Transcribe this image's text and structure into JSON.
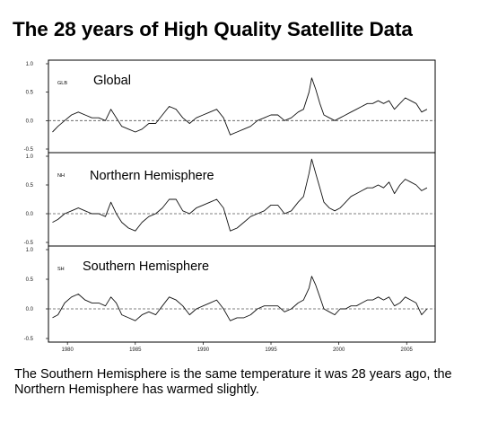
{
  "page": {
    "title": "The 28 years of High Quality Satellite Data",
    "caption": "The Southern Hemisphere is the same temperature it was 28 years ago, the Northern Hemisphere has warmed slightly."
  },
  "chart_data": [
    {
      "type": "line",
      "code": "GLB",
      "label": "Global",
      "ylim": [
        -0.5,
        1.0
      ],
      "yticks": [
        -0.5,
        0.0,
        0.5,
        1.0
      ],
      "ytick_labels": [
        "-0.5",
        "0.0",
        "0.5",
        "1.0"
      ],
      "reference_line": 0.0,
      "x": [
        1978.9,
        1979.3,
        1979.8,
        1980.3,
        1980.8,
        1981.3,
        1981.8,
        1982.3,
        1982.8,
        1983.2,
        1983.6,
        1984.0,
        1984.5,
        1985.0,
        1985.5,
        1986.0,
        1986.5,
        1987.0,
        1987.5,
        1988.0,
        1988.5,
        1989.0,
        1989.5,
        1990.0,
        1990.5,
        1991.0,
        1991.5,
        1992.0,
        1992.5,
        1993.0,
        1993.5,
        1994.0,
        1994.5,
        1995.0,
        1995.5,
        1996.0,
        1996.5,
        1997.0,
        1997.4,
        1997.8,
        1998.0,
        1998.3,
        1998.6,
        1998.9,
        1999.3,
        1999.7,
        2000.1,
        2000.5,
        2000.9,
        2001.3,
        2001.7,
        2002.1,
        2002.5,
        2002.9,
        2003.3,
        2003.7,
        2004.1,
        2004.5,
        2004.9,
        2005.3,
        2005.7,
        2006.1,
        2006.5
      ],
      "y": [
        -0.2,
        -0.1,
        0.0,
        0.1,
        0.15,
        0.1,
        0.05,
        0.05,
        0.0,
        0.2,
        0.05,
        -0.1,
        -0.15,
        -0.2,
        -0.15,
        -0.05,
        -0.05,
        0.1,
        0.25,
        0.2,
        0.05,
        -0.05,
        0.05,
        0.1,
        0.15,
        0.2,
        0.05,
        -0.25,
        -0.2,
        -0.15,
        -0.1,
        0.0,
        0.05,
        0.1,
        0.1,
        0.0,
        0.05,
        0.15,
        0.2,
        0.5,
        0.75,
        0.55,
        0.3,
        0.1,
        0.05,
        0.0,
        0.05,
        0.1,
        0.15,
        0.2,
        0.25,
        0.3,
        0.3,
        0.35,
        0.3,
        0.35,
        0.2,
        0.3,
        0.4,
        0.35,
        0.3,
        0.15,
        0.2
      ]
    },
    {
      "type": "line",
      "code": "NH",
      "label": "Northern Hemisphere",
      "ylim": [
        -0.5,
        1.0
      ],
      "yticks": [
        -0.5,
        0.0,
        0.5,
        1.0
      ],
      "ytick_labels": [
        "-0.5",
        "0.0",
        "0.5",
        "1.0"
      ],
      "reference_line": 0.0,
      "x": [
        1978.9,
        1979.3,
        1979.8,
        1980.3,
        1980.8,
        1981.3,
        1981.8,
        1982.3,
        1982.8,
        1983.2,
        1983.6,
        1984.0,
        1984.5,
        1985.0,
        1985.5,
        1986.0,
        1986.5,
        1987.0,
        1987.5,
        1988.0,
        1988.5,
        1989.0,
        1989.5,
        1990.0,
        1990.5,
        1991.0,
        1991.5,
        1992.0,
        1992.5,
        1993.0,
        1993.5,
        1994.0,
        1994.5,
        1995.0,
        1995.5,
        1996.0,
        1996.5,
        1997.0,
        1997.4,
        1997.8,
        1998.0,
        1998.3,
        1998.6,
        1998.9,
        1999.3,
        1999.7,
        2000.1,
        2000.5,
        2000.9,
        2001.3,
        2001.7,
        2002.1,
        2002.5,
        2002.9,
        2003.3,
        2003.7,
        2004.1,
        2004.5,
        2004.9,
        2005.3,
        2005.7,
        2006.1,
        2006.5
      ],
      "y": [
        -0.15,
        -0.1,
        0.0,
        0.05,
        0.1,
        0.05,
        0.0,
        0.0,
        -0.05,
        0.2,
        0.0,
        -0.15,
        -0.25,
        -0.3,
        -0.15,
        -0.05,
        0.0,
        0.1,
        0.25,
        0.25,
        0.05,
        0.0,
        0.1,
        0.15,
        0.2,
        0.25,
        0.1,
        -0.3,
        -0.25,
        -0.15,
        -0.05,
        0.0,
        0.05,
        0.15,
        0.15,
        0.0,
        0.05,
        0.2,
        0.3,
        0.7,
        0.95,
        0.7,
        0.45,
        0.2,
        0.1,
        0.05,
        0.1,
        0.2,
        0.3,
        0.35,
        0.4,
        0.45,
        0.45,
        0.5,
        0.45,
        0.55,
        0.35,
        0.5,
        0.6,
        0.55,
        0.5,
        0.4,
        0.45
      ]
    },
    {
      "type": "line",
      "code": "SH",
      "label": "Southern Hemisphere",
      "ylim": [
        -0.5,
        1.0
      ],
      "yticks": [
        -0.5,
        0.0,
        0.5,
        1.0
      ],
      "ytick_labels": [
        "-0.5",
        "0.0",
        "0.5",
        "1.0"
      ],
      "xticks": [
        1980,
        1985,
        1990,
        1995,
        2000,
        2005
      ],
      "xtick_labels": [
        "1980",
        "1985",
        "1990",
        "1995",
        "2000",
        "2005"
      ],
      "reference_line": 0.0,
      "x": [
        1978.9,
        1979.3,
        1979.8,
        1980.3,
        1980.8,
        1981.3,
        1981.8,
        1982.3,
        1982.8,
        1983.2,
        1983.6,
        1984.0,
        1984.5,
        1985.0,
        1985.5,
        1986.0,
        1986.5,
        1987.0,
        1987.5,
        1988.0,
        1988.5,
        1989.0,
        1989.5,
        1990.0,
        1990.5,
        1991.0,
        1991.5,
        1992.0,
        1992.5,
        1993.0,
        1993.5,
        1994.0,
        1994.5,
        1995.0,
        1995.5,
        1996.0,
        1996.5,
        1997.0,
        1997.4,
        1997.8,
        1998.0,
        1998.3,
        1998.6,
        1998.9,
        1999.3,
        1999.7,
        2000.1,
        2000.5,
        2000.9,
        2001.3,
        2001.7,
        2002.1,
        2002.5,
        2002.9,
        2003.3,
        2003.7,
        2004.1,
        2004.5,
        2004.9,
        2005.3,
        2005.7,
        2006.1,
        2006.5
      ],
      "y": [
        -0.15,
        -0.1,
        0.1,
        0.2,
        0.25,
        0.15,
        0.1,
        0.1,
        0.05,
        0.2,
        0.1,
        -0.1,
        -0.15,
        -0.2,
        -0.1,
        -0.05,
        -0.1,
        0.05,
        0.2,
        0.15,
        0.05,
        -0.1,
        0.0,
        0.05,
        0.1,
        0.15,
        0.0,
        -0.2,
        -0.15,
        -0.15,
        -0.1,
        0.0,
        0.05,
        0.05,
        0.05,
        -0.05,
        0.0,
        0.1,
        0.15,
        0.35,
        0.55,
        0.4,
        0.2,
        0.0,
        -0.05,
        -0.1,
        0.0,
        0.0,
        0.05,
        0.05,
        0.1,
        0.15,
        0.15,
        0.2,
        0.15,
        0.2,
        0.05,
        0.1,
        0.2,
        0.15,
        0.1,
        -0.1,
        0.0
      ]
    }
  ]
}
